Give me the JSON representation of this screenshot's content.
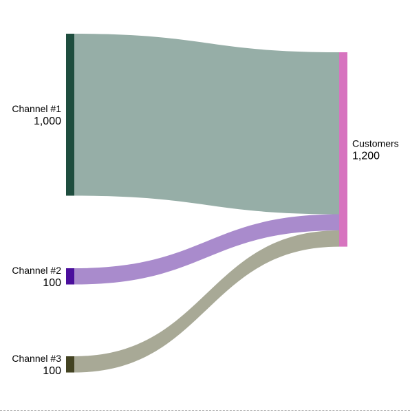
{
  "chart_data": {
    "type": "sankey",
    "title": "",
    "nodes": [
      {
        "id": "ch1",
        "label": "Channel #1",
        "value_label": "1,000",
        "value": 1000,
        "color": "#1e4d3e",
        "column": "left"
      },
      {
        "id": "ch2",
        "label": "Channel #2",
        "value_label": "100",
        "value": 100,
        "color": "#4a0e9c",
        "column": "left"
      },
      {
        "id": "ch3",
        "label": "Channel #3",
        "value_label": "100",
        "value": 100,
        "color": "#434322",
        "column": "left"
      },
      {
        "id": "cust",
        "label": "Customers",
        "value_label": "1,200",
        "value": 1200,
        "color": "#d774bf",
        "column": "right"
      }
    ],
    "links": [
      {
        "source": "ch1",
        "target": "cust",
        "value": 1000,
        "color": "#96aea7"
      },
      {
        "source": "ch2",
        "target": "cust",
        "value": 100,
        "color": "#a98bcc"
      },
      {
        "source": "ch3",
        "target": "cust",
        "value": 100,
        "color": "#a8a996"
      }
    ]
  }
}
